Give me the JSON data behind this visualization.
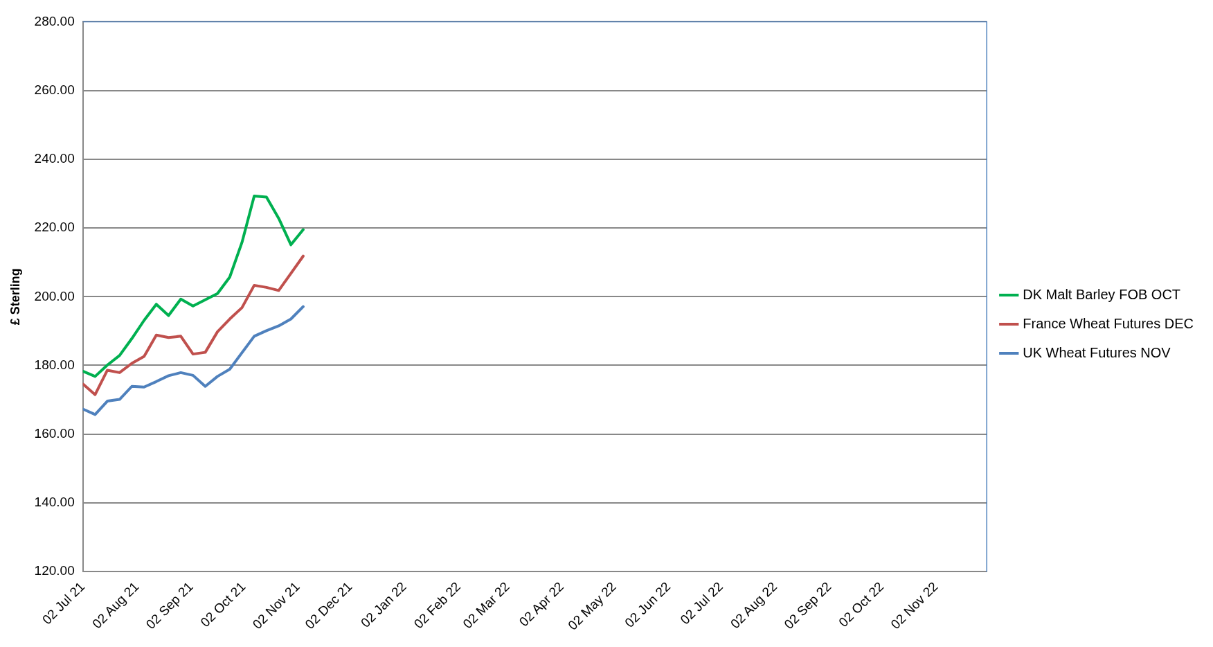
{
  "chart_data": {
    "type": "line",
    "ylabel": "£ Sterling",
    "x": [
      "2021-07-02",
      "2021-07-09",
      "2021-07-16",
      "2021-07-23",
      "2021-07-30",
      "2021-08-06",
      "2021-08-13",
      "2021-08-20",
      "2021-08-27",
      "2021-09-03",
      "2021-09-10",
      "2021-09-17",
      "2021-09-24",
      "2021-10-01",
      "2021-10-08",
      "2021-10-15",
      "2021-10-22",
      "2021-10-29",
      "2021-11-05"
    ],
    "series": [
      {
        "name": "DK Malt Barley FOB OCT",
        "color": "#00b050",
        "values": [
          178.3,
          176.8,
          180.1,
          182.9,
          187.8,
          193.1,
          197.8,
          194.5,
          199.3,
          197.3,
          199.1,
          200.9,
          205.7,
          215.8,
          229.3,
          229.0,
          222.8,
          215.1,
          219.5
        ]
      },
      {
        "name": "France Wheat Futures DEC",
        "color": "#c0504d",
        "values": [
          174.6,
          171.5,
          178.6,
          177.9,
          180.6,
          182.6,
          188.8,
          188.1,
          188.5,
          183.3,
          183.8,
          189.8,
          193.5,
          196.8,
          203.3,
          202.7,
          201.8,
          206.8,
          211.8
        ]
      },
      {
        "name": "UK Wheat Futures NOV",
        "color": "#4f81bd",
        "values": [
          167.3,
          165.7,
          169.6,
          170.1,
          173.9,
          173.7,
          175.3,
          177.0,
          177.9,
          177.1,
          173.9,
          176.8,
          178.9,
          183.7,
          188.5,
          190.1,
          191.5,
          193.5,
          197.1
        ]
      }
    ],
    "xlim": [
      "2021-07-02",
      "2022-12-01"
    ],
    "xticks": [
      {
        "value": "2021-07-02",
        "label": "02 Jul 21"
      },
      {
        "value": "2021-08-02",
        "label": "02 Aug 21"
      },
      {
        "value": "2021-09-02",
        "label": "02 Sep 21"
      },
      {
        "value": "2021-10-02",
        "label": "02 Oct 21"
      },
      {
        "value": "2021-11-02",
        "label": "02 Nov 21"
      },
      {
        "value": "2021-12-02",
        "label": "02 Dec 21"
      },
      {
        "value": "2022-01-02",
        "label": "02 Jan 22"
      },
      {
        "value": "2022-02-02",
        "label": "02 Feb 22"
      },
      {
        "value": "2022-03-02",
        "label": "02 Mar 22"
      },
      {
        "value": "2022-04-02",
        "label": "02 Apr 22"
      },
      {
        "value": "2022-05-02",
        "label": "02 May 22"
      },
      {
        "value": "2022-06-02",
        "label": "02 Jun 22"
      },
      {
        "value": "2022-07-02",
        "label": "02 Jul 22"
      },
      {
        "value": "2022-08-02",
        "label": "02 Aug 22"
      },
      {
        "value": "2022-09-02",
        "label": "02 Sep 22"
      },
      {
        "value": "2022-10-02",
        "label": "02 Oct 22"
      },
      {
        "value": "2022-11-02",
        "label": "02 Nov 22"
      }
    ],
    "ylim": [
      120,
      280
    ],
    "yticks": [
      {
        "value": 120,
        "label": "120.00"
      },
      {
        "value": 140,
        "label": "140.00"
      },
      {
        "value": 160,
        "label": "160.00"
      },
      {
        "value": 180,
        "label": "180.00"
      },
      {
        "value": 200,
        "label": "200.00"
      },
      {
        "value": 220,
        "label": "220.00"
      },
      {
        "value": 240,
        "label": "240.00"
      },
      {
        "value": 260,
        "label": "260.00"
      },
      {
        "value": 280,
        "label": "280.00"
      }
    ],
    "grid": "y",
    "legend": "right",
    "marker": "none",
    "line_style": "solid"
  }
}
